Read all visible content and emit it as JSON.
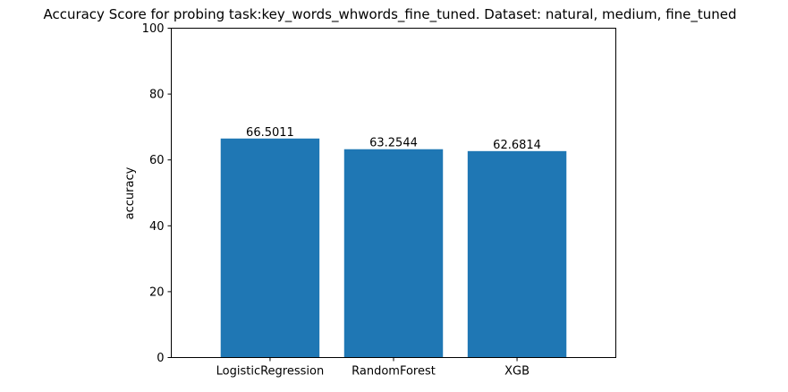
{
  "chart_data": {
    "type": "bar",
    "title": "Accuracy Score for probing task:key_words_whwords_fine_tuned. Dataset: natural, medium, fine_tuned",
    "xlabel": "",
    "ylabel": "accuracy",
    "categories": [
      "LogisticRegression",
      "RandomForest",
      "XGB"
    ],
    "values": [
      66.5011,
      63.2544,
      62.6814
    ],
    "value_labels": [
      "66.5011",
      "63.2544",
      "62.6814"
    ],
    "ylim": [
      0,
      100
    ],
    "yticks": [
      0,
      20,
      40,
      60,
      80,
      100
    ],
    "ytick_labels": [
      "0",
      "20",
      "40",
      "60",
      "80",
      "100"
    ],
    "grid": false,
    "legend": "none",
    "bar_color": "#1f77b4"
  }
}
